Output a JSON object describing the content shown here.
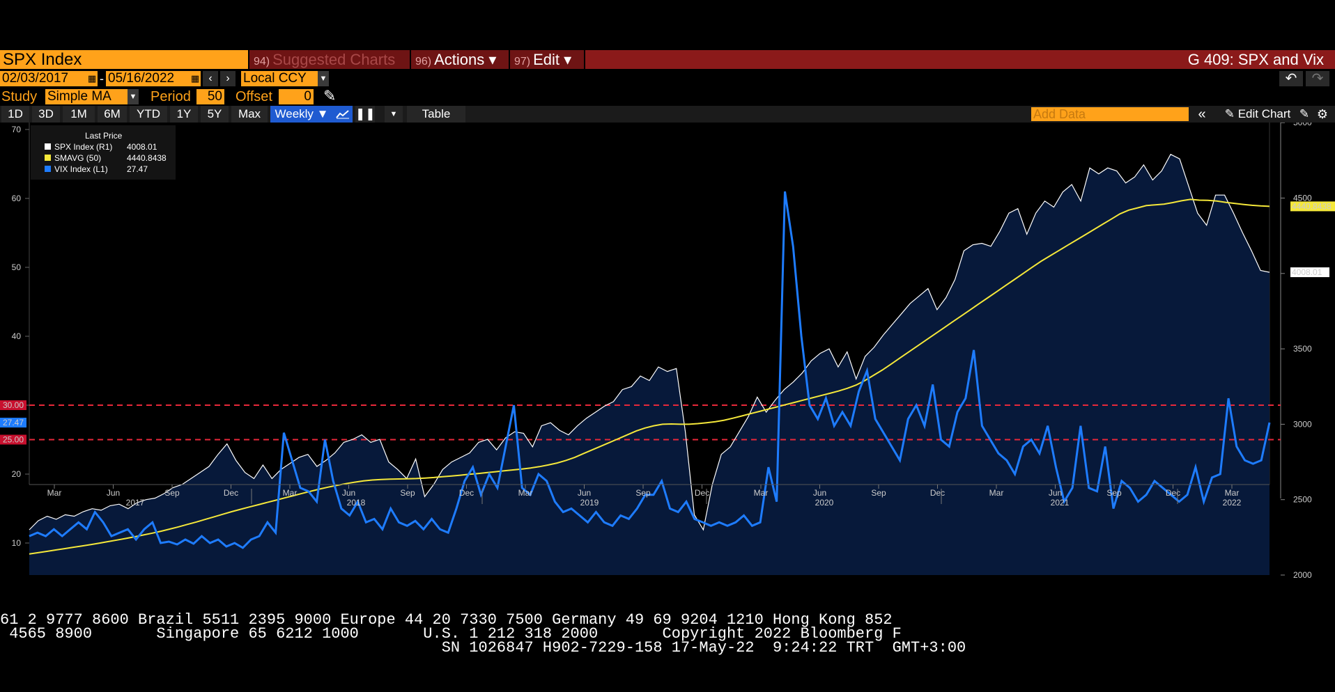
{
  "header": {
    "ticker": "SPX Index",
    "suggested": {
      "num": "94)",
      "label": "Suggested Charts"
    },
    "actions": {
      "num": "96)",
      "label": "Actions ▾"
    },
    "edit": {
      "num": "97)",
      "label": "Edit ▾"
    },
    "title": "G 409: SPX and Vix"
  },
  "range": {
    "start": "02/03/2017",
    "dash": "-",
    "end": "05/16/2022",
    "currency": "Local CCY"
  },
  "study": {
    "label": "Study",
    "value": "Simple MA",
    "period_label": "Period",
    "period": "50",
    "offset_label": "Offset",
    "offset": "0"
  },
  "tabs": [
    "1D",
    "3D",
    "1M",
    "6M",
    "YTD",
    "1Y",
    "5Y",
    "Max",
    "Weekly ▼"
  ],
  "table_label": "Table",
  "add_data_placeholder": "Add Data",
  "edit_chart_label": "Edit Chart",
  "colors": {
    "spx": "#ffffff",
    "smavg": "#f5e83a",
    "vix": "#1e7cff",
    "area": "#0a1a3a",
    "refline": "#e8283a",
    "orange": "#ffa21a"
  },
  "chart_data": {
    "type": "line",
    "legend": {
      "title": "Last Price",
      "entries": [
        {
          "name": "SPX Index  (R1)",
          "value": "4008.01"
        },
        {
          "name": "SMAVG (50)",
          "value": "4440.8438"
        },
        {
          "name": "VIX Index  (L1)",
          "value": "27.47"
        }
      ]
    },
    "left_axis": {
      "ticks": [
        10,
        20,
        30,
        40,
        50,
        60,
        70
      ],
      "range": [
        3,
        70
      ]
    },
    "right_axis": {
      "ticks": [
        2000,
        2500,
        3000,
        3500,
        4000,
        4500,
        5000
      ],
      "range": [
        2000,
        5000
      ]
    },
    "x_month_labels": [
      "Mar",
      "Jun",
      "Sep",
      "Dec",
      "Mar",
      "Jun",
      "Sep",
      "Dec",
      "Mar",
      "Jun",
      "Sep",
      "Dec",
      "Mar",
      "Jun",
      "Sep",
      "Dec",
      "Mar",
      "Jun",
      "Sep",
      "Dec",
      "Mar"
    ],
    "x_year_labels": [
      "2017",
      "2018",
      "2019",
      "2020",
      "2021",
      "2022"
    ],
    "ref_lines": [
      {
        "value": 30,
        "label": "30.00"
      },
      {
        "value": 25,
        "label": "25.00"
      }
    ],
    "last_labels": {
      "vix": "27.47",
      "smavg": "4440.8438",
      "spx": "4008.01"
    },
    "series": [
      {
        "name": "SPX Index",
        "axis": "right",
        "values": [
          2300,
          2360,
          2390,
          2370,
          2400,
          2390,
          2420,
          2440,
          2430,
          2460,
          2470,
          2440,
          2480,
          2500,
          2510,
          2540,
          2580,
          2600,
          2640,
          2680,
          2720,
          2800,
          2870,
          2760,
          2680,
          2640,
          2730,
          2640,
          2700,
          2740,
          2780,
          2800,
          2720,
          2760,
          2810,
          2880,
          2900,
          2930,
          2880,
          2900,
          2750,
          2700,
          2640,
          2770,
          2520,
          2600,
          2700,
          2750,
          2780,
          2810,
          2880,
          2900,
          2830,
          2910,
          2950,
          2940,
          2850,
          2990,
          3010,
          2960,
          2930,
          2990,
          3040,
          3080,
          3120,
          3150,
          3230,
          3250,
          3320,
          3290,
          3380,
          3350,
          3370,
          2950,
          2400,
          2300,
          2600,
          2800,
          2850,
          2950,
          3050,
          3180,
          3080,
          3160,
          3230,
          3280,
          3340,
          3420,
          3470,
          3500,
          3380,
          3480,
          3300,
          3450,
          3510,
          3590,
          3660,
          3730,
          3800,
          3850,
          3900,
          3760,
          3840,
          3960,
          4150,
          4190,
          4200,
          4180,
          4280,
          4400,
          4430,
          4260,
          4400,
          4480,
          4440,
          4540,
          4590,
          4480,
          4700,
          4660,
          4700,
          4680,
          4600,
          4640,
          4720,
          4620,
          4680,
          4790,
          4760,
          4580,
          4400,
          4320,
          4520,
          4520,
          4400,
          4270,
          4150,
          4020,
          4008
        ]
      },
      {
        "name": "SMAVG (50)",
        "axis": "right",
        "values": [
          2140,
          2148,
          2157,
          2166,
          2175,
          2184,
          2193,
          2202,
          2212,
          2222,
          2232,
          2243,
          2254,
          2266,
          2278,
          2291,
          2305,
          2320,
          2336,
          2352,
          2369,
          2386,
          2403,
          2420,
          2436,
          2451,
          2466,
          2481,
          2496,
          2511,
          2526,
          2541,
          2556,
          2570,
          2583,
          2595,
          2606,
          2616,
          2624,
          2630,
          2634,
          2636,
          2637,
          2638,
          2640,
          2643,
          2647,
          2652,
          2657,
          2662,
          2668,
          2673,
          2679,
          2685,
          2691,
          2697,
          2703,
          2710,
          2719,
          2730,
          2743,
          2760,
          2780,
          2805,
          2830,
          2855,
          2880,
          2905,
          2930,
          2955,
          2975,
          2990,
          3000,
          3002,
          3000,
          3000,
          3004,
          3010,
          3017,
          3027,
          3040,
          3055,
          3070,
          3085,
          3100,
          3115,
          3130,
          3145,
          3160,
          3175,
          3190,
          3205,
          3220,
          3238,
          3260,
          3290,
          3325,
          3360,
          3400,
          3440,
          3480,
          3520,
          3560,
          3600,
          3640,
          3680,
          3720,
          3760,
          3800,
          3840,
          3880,
          3920,
          3960,
          4000,
          4040,
          4080,
          4115,
          4150,
          4185,
          4220,
          4255,
          4290,
          4325,
          4360,
          4395,
          4420,
          4435,
          4450,
          4455,
          4460,
          4470,
          4482,
          4491,
          4486,
          4485,
          4480,
          4472,
          4465,
          4458,
          4452,
          4448,
          4445
        ]
      },
      {
        "name": "VIX Index",
        "axis": "left",
        "values": [
          11,
          11.5,
          11,
          12,
          11,
          12,
          13,
          12,
          14.5,
          13,
          11,
          11.5,
          12,
          10.5,
          12,
          13,
          10,
          10.2,
          9.8,
          10.5,
          9.9,
          11,
          10,
          10.5,
          9.5,
          10,
          9.3,
          10.5,
          11,
          13,
          11.5,
          26,
          22,
          18,
          17.5,
          16,
          25,
          19,
          15,
          14,
          16,
          13,
          13.5,
          12,
          15,
          13,
          12.5,
          13.2,
          12,
          13.5,
          12,
          11.5,
          15,
          19,
          21,
          17,
          20,
          18,
          24,
          30,
          18,
          17,
          20,
          19,
          16,
          14.5,
          15,
          14,
          13,
          14.5,
          13,
          12.5,
          14,
          13.5,
          15,
          17,
          17,
          19,
          15,
          14.5,
          16,
          13.5,
          13,
          12.5,
          13,
          12.5,
          13,
          14,
          12.5,
          13,
          21,
          16,
          61,
          53,
          40,
          30,
          28,
          31,
          27,
          29,
          27,
          32,
          35,
          28,
          26,
          24,
          22,
          28,
          30,
          27,
          33,
          25,
          24,
          29,
          31,
          38,
          27,
          25,
          23,
          22,
          20,
          24,
          25,
          23,
          27,
          21,
          16,
          18,
          27,
          18,
          17.5,
          24,
          15,
          19,
          18,
          16,
          17,
          19,
          18,
          17,
          16,
          17,
          21,
          16,
          19.5,
          20,
          31,
          24,
          22,
          21.5,
          22,
          27.47
        ]
      }
    ]
  },
  "footer": {
    "line1": "61 2 9777 8600 Brazil 5511 2395 9000 Europe 44 20 7330 7500 Germany 49 69 9204 1210 Hong Kong 852",
    "line2": " 4565 8900       Singapore 65 6212 1000       U.S. 1 212 318 2000       Copyright 2022 Bloomberg F",
    "line3": "                                                SN 1026847 H902-7229-158 17-May-22  9:24:22 TRT  GMT+3:00"
  }
}
